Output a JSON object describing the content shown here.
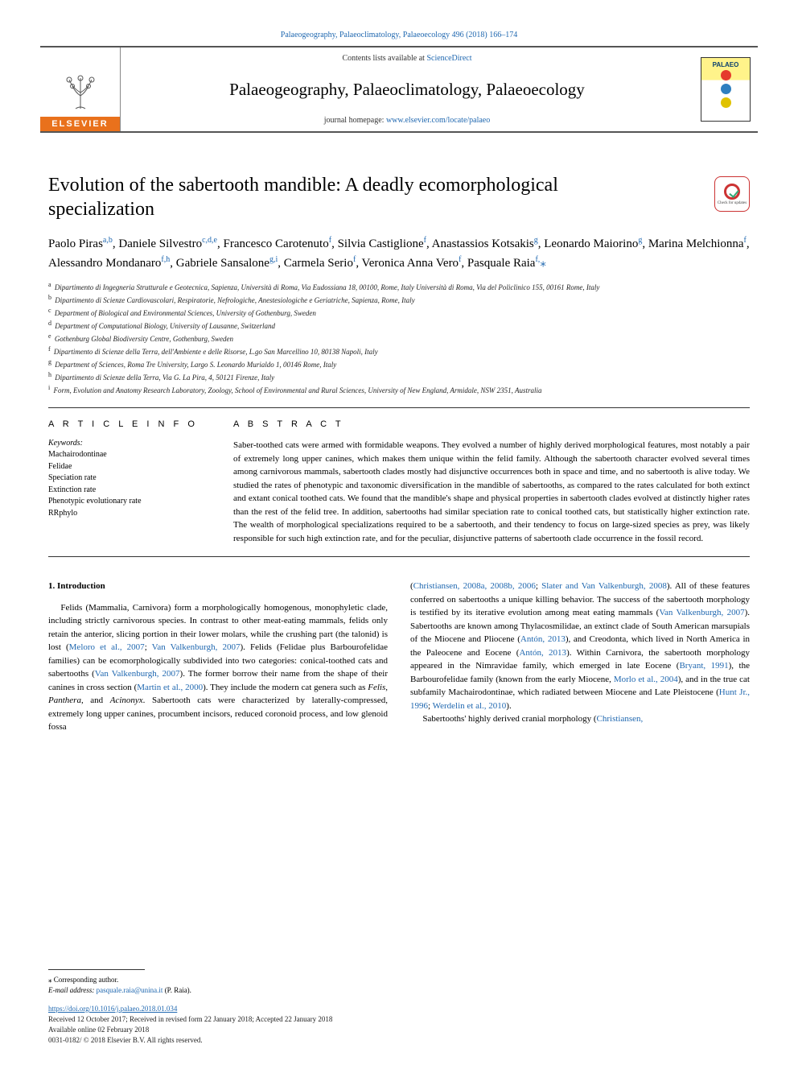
{
  "header": {
    "citation": "Palaeogeography, Palaeoclimatology, Palaeoecology 496 (2018) 166–174",
    "contents_prefix": "Contents lists available at ",
    "contents_link": "ScienceDirect",
    "journal_title": "Palaeogeography, Palaeoclimatology, Palaeoecology",
    "homepage_prefix": "journal homepage: ",
    "homepage_url": "www.elsevier.com/locate/palaeo",
    "publisher_logo_text": "ELSEVIER",
    "cover": {
      "label": "PALAEO",
      "circles": [
        "#e53b2c",
        "#2f7fbf",
        "#e0c200"
      ]
    }
  },
  "article": {
    "title": "Evolution of the sabertooth mandible: A deadly ecomorphological specialization",
    "crossmark_caption": "Check for updates"
  },
  "authors_html": "Paolo Piras<sup>a,b</sup>, Daniele Silvestro<sup>c,d,e</sup>, Francesco Carotenuto<sup>f</sup>, Silvia Castiglione<sup>f</sup>, Anastassios Kotsakis<sup>g</sup>, Leonardo Maiorino<sup>g</sup>, Marina Melchionna<sup>f</sup>, Alessandro Mondanaro<sup>f,h</sup>, Gabriele Sansalone<sup>g,i</sup>, Carmela Serio<sup>f</sup>, Veronica Anna Vero<sup>f</sup>, Pasquale Raia<sup>f,</sup><span class=\"ast\">⁎</span>",
  "affiliations": [
    {
      "key": "a",
      "text": "Dipartimento di Ingegneria Strutturale e Geotecnica, Sapienza, Università di Roma, Via Eudossiana 18, 00100, Rome, Italy Università di Roma, Via del Policlinico 155, 00161 Rome, Italy"
    },
    {
      "key": "b",
      "text": "Dipartimento di Scienze Cardiovascolari, Respiratorie, Nefrologiche, Anestesiologiche e Geriatriche, Sapienza, Rome, Italy"
    },
    {
      "key": "c",
      "text": "Department of Biological and Environmental Sciences, University of Gothenburg, Sweden"
    },
    {
      "key": "d",
      "text": "Department of Computational Biology, University of Lausanne, Switzerland"
    },
    {
      "key": "e",
      "text": "Gothenburg Global Biodiversity Centre, Gothenburg, Sweden"
    },
    {
      "key": "f",
      "text": "Dipartimento di Scienze della Terra, dell'Ambiente e delle Risorse, L.go San Marcellino 10, 80138 Napoli, Italy"
    },
    {
      "key": "g",
      "text": "Department of Sciences, Roma Tre University, Largo S. Leonardo Murialdo 1, 00146 Rome, Italy"
    },
    {
      "key": "h",
      "text": "Dipartimento di Scienze della Terra, Via G. La Pira, 4, 50121 Firenze, Italy"
    },
    {
      "key": "i",
      "text": "Form, Evolution and Anatomy Research Laboratory, Zoology, School of Environmental and Rural Sciences, University of New England, Armidale, NSW 2351, Australia"
    }
  ],
  "info": {
    "heading": "A R T I C L E  I N F O",
    "keywords_label": "Keywords:",
    "keywords": [
      "Machairodontinae",
      "Felidae",
      "Speciation rate",
      "Extinction rate",
      "Phenotypic evolutionary rate",
      "RRphylo"
    ]
  },
  "abstract": {
    "heading": "A B S T R A C T",
    "text": "Saber-toothed cats were armed with formidable weapons. They evolved a number of highly derived morphological features, most notably a pair of extremely long upper canines, which makes them unique within the felid family. Although the sabertooth character evolved several times among carnivorous mammals, sabertooth clades mostly had disjunctive occurrences both in space and time, and no sabertooth is alive today. We studied the rates of phenotypic and taxonomic diversification in the mandible of sabertooths, as compared to the rates calculated for both extinct and extant conical toothed cats. We found that the mandible's shape and physical properties in sabertooth clades evolved at distinctly higher rates than the rest of the felid tree. In addition, sabertooths had similar speciation rate to conical toothed cats, but statistically higher extinction rate. The wealth of morphological specializations required to be a sabertooth, and their tendency to focus on large-sized species as prey, was likely responsible for such high extinction rate, and for the peculiar, disjunctive patterns of sabertooth clade occurrence in the fossil record."
  },
  "body": {
    "section_number": "1.",
    "section_title": "Introduction",
    "col1_html": "Felids (Mammalia, Carnivora) form a morphologically homogenous, monophyletic clade, including strictly carnivorous species. In contrast to other meat-eating mammals, felids only retain the anterior, slicing portion in their lower molars, while the crushing part (the talonid) is lost (<span class=\"cite\">Meloro et al., 2007</span>; <span class=\"cite\">Van Valkenburgh, 2007</span>). Felids (Felidae plus Barbourofelidae families) can be ecomorphologically subdivided into two categories: conical-toothed cats and sabertooths (<span class=\"cite\">Van Valkenburgh, 2007</span>). The former borrow their name from the shape of their canines in cross section (<span class=\"cite\">Martin et al., 2000</span>). They include the modern cat genera such as <em>Felis</em>, <em>Panthera</em>, and <em>Acinonyx</em>. Sabertooth cats were characterized by laterally-compressed, extremely long upper canines, procumbent incisors, reduced coronoid process, and low glenoid fossa",
    "col2_html": "(<span class=\"cite\">Christiansen, 2008a, 2008b, 2006</span>; <span class=\"cite\">Slater and Van Valkenburgh, 2008</span>). All of these features conferred on sabertooths a unique killing behavior. The success of the sabertooth morphology is testified by its iterative evolution among meat eating mammals (<span class=\"cite\">Van Valkenburgh, 2007</span>). Sabertooths are known among Thylacosmilidae, an extinct clade of South American marsupials of the Miocene and Pliocene (<span class=\"cite\">Antón, 2013</span>), and Creodonta, which lived in North America in the Paleocene and Eocene (<span class=\"cite\">Antón, 2013</span>). Within Carnivora, the sabertooth morphology appeared in the Nimravidae family, which emerged in late Eocene (<span class=\"cite\">Bryant, 1991</span>), the Barbourofelidae family (known from the early Miocene, <span class=\"cite\">Morlo et al., 2004</span>), and in the true cat subfamily Machairodontinae, which radiated between Miocene and Late Pleistocene (<span class=\"cite\">Hunt Jr., 1996</span>; <span class=\"cite\">Werdelin et al., 2010</span>).",
    "col2_p2_html": "Sabertooths' highly derived cranial morphology (<span class=\"cite\">Christiansen,</span>"
  },
  "footer": {
    "corr_label": "⁎ Corresponding author.",
    "email_label": "E-mail address:",
    "email": "pasquale.raia@unina.it",
    "email_attribution": "(P. Raia).",
    "doi": "https://doi.org/10.1016/j.palaeo.2018.01.034",
    "history": "Received 12 October 2017; Received in revised form 22 January 2018; Accepted 22 January 2018",
    "available": "Available online 02 February 2018",
    "copyright": "0031-0182/ © 2018 Elsevier B.V. All rights reserved."
  },
  "colors": {
    "link": "#2068b0",
    "elsevier_orange": "#e9711c",
    "rule": "#333333"
  }
}
